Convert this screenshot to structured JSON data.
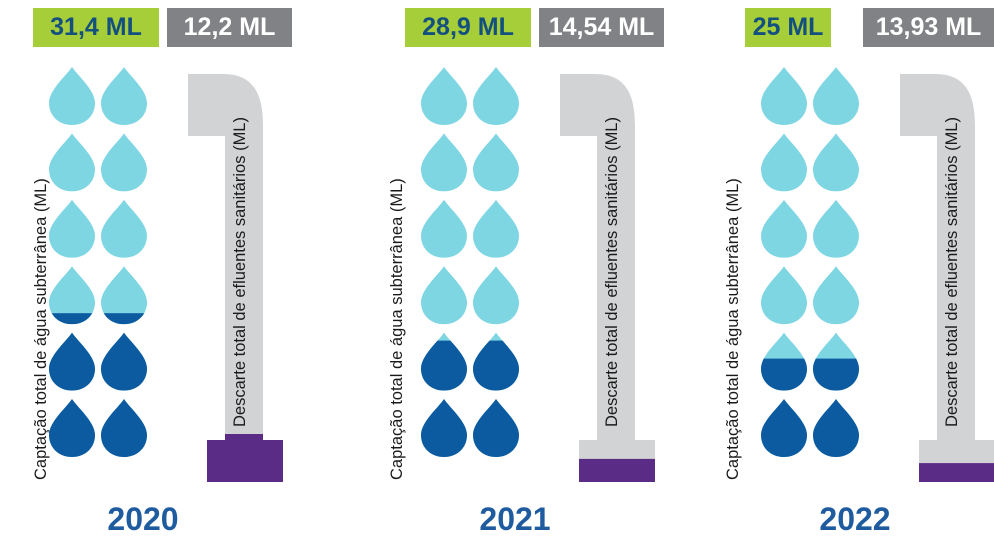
{
  "colors": {
    "badge_green": "#a6ce39",
    "badge_gray": "#808285",
    "drop_light": "#7ed6e3",
    "drop_dark": "#0c5aa0",
    "pipe_gray": "#d1d3d4",
    "effluent_purple": "#5b2c86",
    "year_blue": "#1f5c9f"
  },
  "labels": {
    "capture": "Captação total de água subterrânea (ML)",
    "discharge": "Descarte total de efluentes sanitários (ML)"
  },
  "chart_data": {
    "type": "pictogram",
    "categories": [
      "2020",
      "2021",
      "2022"
    ],
    "series": [
      {
        "name": "Captação total de água subterrânea (ML)",
        "values": [
          31.4,
          28.9,
          25
        ]
      },
      {
        "name": "Descarte total de efluentes sanitários (ML)",
        "values": [
          12.2,
          14.54,
          13.93
        ]
      }
    ],
    "panels": [
      {
        "year": "2020",
        "capture_label": "31,4 ML",
        "discharge_label": "12,2 ML",
        "capture_fill_rows": 2.2,
        "discharge_fill": 0.1
      },
      {
        "year": "2021",
        "capture_label": "28,9 ML",
        "discharge_label": "14,54 ML",
        "capture_fill_rows": 1.85,
        "discharge_fill": 0.06
      },
      {
        "year": "2022",
        "capture_label": "25 ML",
        "discharge_label": "13,93 ML",
        "capture_fill_rows": 1.55,
        "discharge_fill": 0.05
      }
    ]
  }
}
